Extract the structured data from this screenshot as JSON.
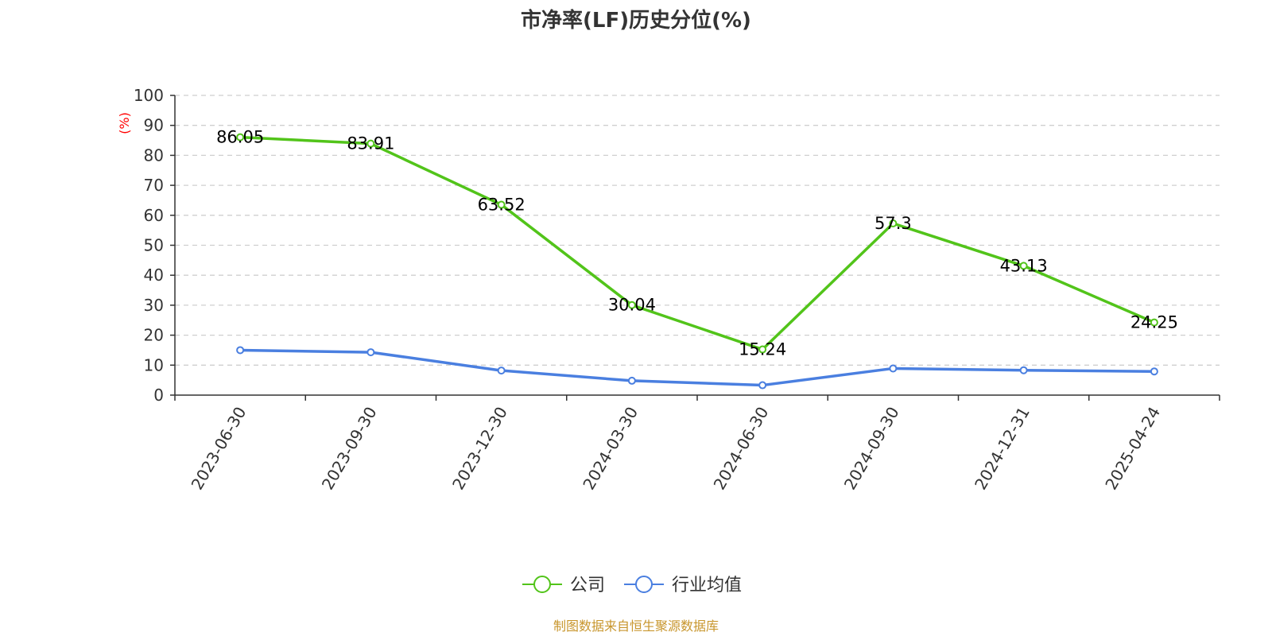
{
  "chart_data": {
    "type": "line",
    "title": "市净率(LF)历史分位(%)",
    "ylabel": "(%)",
    "ylim": [
      0,
      100
    ],
    "yticks": [
      0,
      10,
      20,
      30,
      40,
      50,
      60,
      70,
      80,
      90,
      100
    ],
    "categories": [
      "2023-06-30",
      "2023-09-30",
      "2023-12-30",
      "2024-03-30",
      "2024-06-30",
      "2024-09-30",
      "2024-12-31",
      "2025-04-24"
    ],
    "series": [
      {
        "name": "公司",
        "color": "#52c41a",
        "values": [
          86.05,
          83.91,
          63.52,
          30.04,
          15.24,
          57.3,
          43.13,
          24.25
        ],
        "labels": [
          "86.05",
          "83.91",
          "63.52",
          "30.04",
          "15.24",
          "57.3",
          "43.13",
          "24.25"
        ]
      },
      {
        "name": "行业均值",
        "color": "#4a7fe0",
        "values": [
          15.0,
          14.3,
          8.2,
          4.8,
          3.3,
          8.9,
          8.3,
          7.9
        ]
      }
    ],
    "grid": true,
    "legend_position": "bottom-center",
    "ylabel_color": "#ff0000"
  },
  "source_text": "制图数据来自恒生聚源数据库",
  "source_color": "#c8962d"
}
